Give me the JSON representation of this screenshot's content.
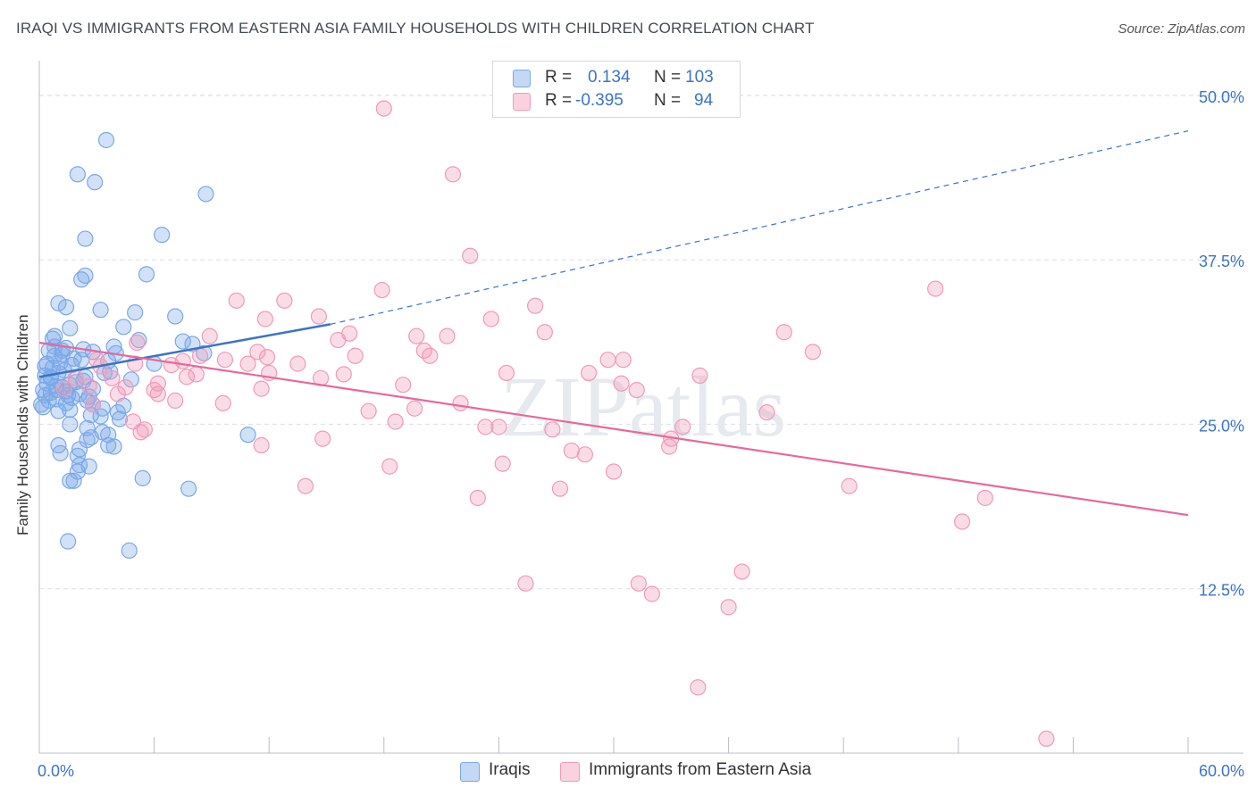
{
  "title": "IRAQI VS IMMIGRANTS FROM EASTERN ASIA FAMILY HOUSEHOLDS WITH CHILDREN CORRELATION CHART",
  "source": "Source: ZipAtlas.com",
  "watermark": "ZIPatlas",
  "legend": {
    "rows": [
      {
        "r_label": "R =",
        "r_value": "0.134",
        "n_label": "N =",
        "n_value": "103",
        "color": "#7aa8e8"
      },
      {
        "r_label": "R =",
        "r_value": "-0.395",
        "n_label": "N =",
        "n_value": "94",
        "color": "#f19ab8"
      }
    ]
  },
  "bottom_legend": [
    {
      "label": "Iraqis",
      "color": "#7aa8e8"
    },
    {
      "label": "Immigrants from Eastern Asia",
      "color": "#f19ab8"
    }
  ],
  "colors": {
    "blue": "#3a74c7",
    "pink": "#e8689a",
    "blue_fill": "rgba(122,168,232,0.35)",
    "pink_fill": "rgba(241,154,184,0.35)",
    "grid": "#dcdfe4",
    "axis_text": "#3a74c7"
  },
  "chart_data": {
    "type": "scatter",
    "title": "IRAQI VS IMMIGRANTS FROM EASTERN ASIA FAMILY HOUSEHOLDS WITH CHILDREN CORRELATION CHART",
    "xlabel": "",
    "ylabel": "Family Households with Children",
    "xlim": [
      0,
      60
    ],
    "ylim": [
      0,
      52.5
    ],
    "x_tick_labels": [
      "0.0%",
      "60.0%"
    ],
    "y_ticks": [
      12.5,
      25.0,
      37.5,
      50.0
    ],
    "y_tick_labels": [
      "12.5%",
      "25.0%",
      "37.5%",
      "50.0%"
    ],
    "grid": true,
    "series": [
      {
        "name": "Iraqis",
        "color": "#7aa8e8",
        "trend": {
          "x": [
            0,
            15.2
          ],
          "y": [
            28.6,
            32.6
          ],
          "dashed_extension_to": [
            60,
            47.3
          ]
        },
        "points": [
          [
            3.5,
            46.6
          ],
          [
            2.0,
            44.0
          ],
          [
            2.9,
            43.4
          ],
          [
            8.7,
            42.5
          ],
          [
            6.4,
            39.4
          ],
          [
            2.4,
            39.1
          ],
          [
            5.6,
            36.4
          ],
          [
            2.4,
            36.3
          ],
          [
            2.2,
            36.0
          ],
          [
            1.0,
            34.2
          ],
          [
            1.4,
            33.9
          ],
          [
            3.2,
            33.7
          ],
          [
            5.0,
            33.5
          ],
          [
            7.1,
            33.2
          ],
          [
            4.4,
            32.4
          ],
          [
            1.6,
            32.3
          ],
          [
            0.8,
            31.7
          ],
          [
            0.7,
            31.5
          ],
          [
            5.2,
            31.4
          ],
          [
            7.5,
            31.3
          ],
          [
            8.0,
            31.1
          ],
          [
            1.4,
            30.8
          ],
          [
            2.3,
            30.7
          ],
          [
            1.2,
            30.6
          ],
          [
            0.5,
            30.6
          ],
          [
            2.8,
            30.5
          ],
          [
            4.0,
            30.4
          ],
          [
            8.6,
            30.4
          ],
          [
            1.2,
            30.3
          ],
          [
            0.8,
            30.2
          ],
          [
            3.6,
            29.8
          ],
          [
            1.1,
            29.7
          ],
          [
            6.0,
            29.6
          ],
          [
            1.7,
            29.5
          ],
          [
            0.3,
            29.4
          ],
          [
            0.7,
            29.3
          ],
          [
            3.7,
            29.0
          ],
          [
            1.0,
            28.9
          ],
          [
            0.3,
            28.7
          ],
          [
            0.6,
            28.5
          ],
          [
            2.3,
            28.3
          ],
          [
            0.4,
            28.1
          ],
          [
            1.6,
            28.0
          ],
          [
            0.9,
            27.9
          ],
          [
            2.8,
            27.7
          ],
          [
            0.2,
            27.6
          ],
          [
            1.4,
            27.5
          ],
          [
            0.6,
            27.4
          ],
          [
            2.1,
            27.3
          ],
          [
            0.3,
            27.2
          ],
          [
            1.7,
            27.0
          ],
          [
            0.9,
            26.9
          ],
          [
            2.5,
            26.8
          ],
          [
            1.4,
            26.6
          ],
          [
            0.1,
            26.5
          ],
          [
            4.4,
            26.4
          ],
          [
            0.2,
            26.3
          ],
          [
            3.3,
            26.2
          ],
          [
            1.6,
            26.1
          ],
          [
            1.0,
            26.0
          ],
          [
            4.1,
            25.9
          ],
          [
            2.7,
            25.7
          ],
          [
            3.2,
            25.6
          ],
          [
            4.2,
            25.4
          ],
          [
            1.6,
            25.0
          ],
          [
            2.5,
            24.7
          ],
          [
            3.3,
            24.4
          ],
          [
            3.6,
            24.2
          ],
          [
            2.7,
            24.0
          ],
          [
            2.5,
            23.8
          ],
          [
            10.9,
            24.2
          ],
          [
            3.6,
            23.4
          ],
          [
            3.9,
            23.3
          ],
          [
            1.0,
            23.4
          ],
          [
            2.1,
            23.1
          ],
          [
            1.1,
            22.8
          ],
          [
            2.0,
            22.6
          ],
          [
            2.1,
            21.9
          ],
          [
            2.6,
            21.8
          ],
          [
            2.0,
            21.4
          ],
          [
            5.4,
            20.9
          ],
          [
            1.6,
            20.7
          ],
          [
            1.8,
            20.7
          ],
          [
            7.8,
            20.1
          ],
          [
            1.5,
            16.1
          ],
          [
            4.7,
            15.4
          ],
          [
            0.8,
            30.9
          ],
          [
            1.9,
            28.2
          ],
          [
            2.6,
            27.1
          ],
          [
            0.5,
            26.8
          ],
          [
            1.2,
            27.8
          ],
          [
            3.4,
            28.9
          ],
          [
            2.2,
            29.9
          ],
          [
            1.5,
            27.2
          ],
          [
            0.6,
            28.6
          ],
          [
            3.9,
            30.9
          ],
          [
            2.8,
            26.5
          ],
          [
            1.3,
            29.1
          ],
          [
            4.8,
            28.4
          ],
          [
            0.9,
            27.6
          ],
          [
            1.8,
            30.0
          ],
          [
            2.4,
            28.6
          ],
          [
            0.4,
            29.6
          ]
        ]
      },
      {
        "name": "Immigrants from Eastern Asia",
        "color": "#f19ab8",
        "trend": {
          "x": [
            0,
            60
          ],
          "y": [
            31.2,
            18.1
          ]
        },
        "points": [
          [
            18.0,
            49.0
          ],
          [
            21.6,
            44.0
          ],
          [
            22.5,
            37.8
          ],
          [
            17.9,
            35.2
          ],
          [
            46.8,
            35.3
          ],
          [
            10.3,
            34.4
          ],
          [
            12.8,
            34.4
          ],
          [
            25.9,
            34.0
          ],
          [
            14.6,
            33.2
          ],
          [
            11.8,
            33.0
          ],
          [
            23.6,
            33.0
          ],
          [
            26.4,
            32.0
          ],
          [
            16.2,
            31.9
          ],
          [
            8.9,
            31.7
          ],
          [
            19.7,
            31.7
          ],
          [
            21.3,
            31.7
          ],
          [
            38.9,
            32.0
          ],
          [
            15.6,
            31.4
          ],
          [
            5.1,
            31.2
          ],
          [
            11.4,
            30.5
          ],
          [
            20.1,
            30.6
          ],
          [
            40.4,
            30.5
          ],
          [
            16.5,
            30.2
          ],
          [
            11.9,
            30.1
          ],
          [
            20.4,
            30.2
          ],
          [
            7.5,
            29.8
          ],
          [
            9.7,
            29.9
          ],
          [
            29.7,
            29.9
          ],
          [
            30.5,
            29.9
          ],
          [
            5.0,
            29.6
          ],
          [
            13.5,
            29.6
          ],
          [
            6.9,
            29.5
          ],
          [
            10.9,
            29.6
          ],
          [
            3.2,
            29.4
          ],
          [
            24.4,
            28.9
          ],
          [
            15.9,
            28.8
          ],
          [
            28.7,
            28.9
          ],
          [
            8.2,
            28.8
          ],
          [
            34.5,
            28.7
          ],
          [
            7.7,
            28.6
          ],
          [
            14.7,
            28.5
          ],
          [
            3.8,
            28.5
          ],
          [
            6.2,
            28.1
          ],
          [
            19.0,
            28.0
          ],
          [
            30.4,
            28.1
          ],
          [
            2.6,
            27.9
          ],
          [
            11.6,
            27.7
          ],
          [
            4.5,
            27.8
          ],
          [
            6.0,
            27.6
          ],
          [
            31.2,
            27.6
          ],
          [
            6.2,
            27.3
          ],
          [
            1.3,
            27.7
          ],
          [
            4.1,
            27.3
          ],
          [
            7.1,
            26.8
          ],
          [
            9.6,
            26.6
          ],
          [
            22.0,
            26.6
          ],
          [
            2.8,
            26.5
          ],
          [
            19.6,
            26.2
          ],
          [
            17.2,
            26.0
          ],
          [
            38.0,
            25.9
          ],
          [
            4.9,
            25.2
          ],
          [
            18.6,
            25.2
          ],
          [
            23.3,
            24.8
          ],
          [
            24.0,
            24.8
          ],
          [
            33.6,
            24.8
          ],
          [
            5.5,
            24.6
          ],
          [
            5.3,
            24.4
          ],
          [
            14.8,
            23.9
          ],
          [
            33.0,
            23.9
          ],
          [
            11.6,
            23.4
          ],
          [
            32.9,
            23.3
          ],
          [
            27.8,
            23.0
          ],
          [
            28.5,
            22.7
          ],
          [
            24.2,
            22.0
          ],
          [
            18.3,
            21.8
          ],
          [
            30.0,
            21.4
          ],
          [
            13.9,
            20.3
          ],
          [
            42.3,
            20.3
          ],
          [
            27.2,
            20.1
          ],
          [
            22.9,
            19.4
          ],
          [
            49.4,
            19.4
          ],
          [
            48.2,
            17.6
          ],
          [
            36.7,
            13.8
          ],
          [
            25.4,
            12.9
          ],
          [
            31.3,
            12.9
          ],
          [
            32.0,
            12.1
          ],
          [
            36.0,
            11.1
          ],
          [
            34.4,
            5.0
          ],
          [
            52.6,
            1.1
          ],
          [
            3.0,
            29.9
          ],
          [
            1.9,
            28.5
          ],
          [
            8.4,
            30.2
          ],
          [
            12.0,
            28.9
          ],
          [
            26.8,
            24.6
          ]
        ]
      }
    ]
  }
}
